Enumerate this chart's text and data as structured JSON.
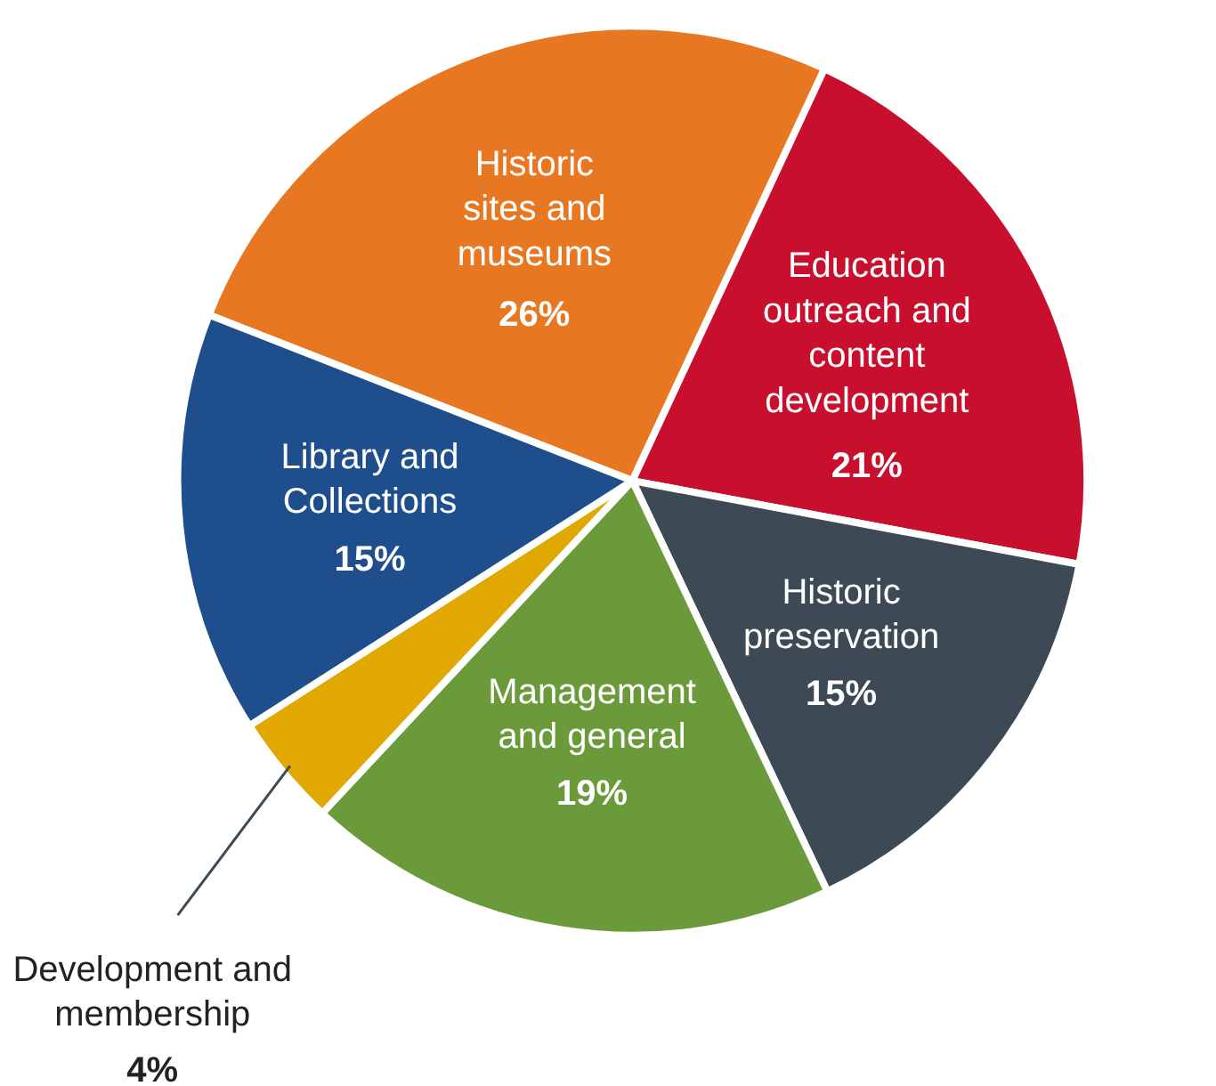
{
  "chart_data": {
    "type": "pie",
    "categories": [
      "Historic sites and museums",
      "Education outreach and content development",
      "Historic preservation",
      "Management and general",
      "Development and membership",
      "Library and Collections"
    ],
    "values": [
      26,
      21,
      15,
      19,
      4,
      15
    ],
    "value_labels": [
      "26%",
      "21%",
      "15%",
      "19%",
      "4%",
      "15%"
    ],
    "colors": [
      "#e87722",
      "#c8102e",
      "#3d4a55",
      "#6a9a3a",
      "#e0a800",
      "#1f4e8c"
    ]
  }
}
